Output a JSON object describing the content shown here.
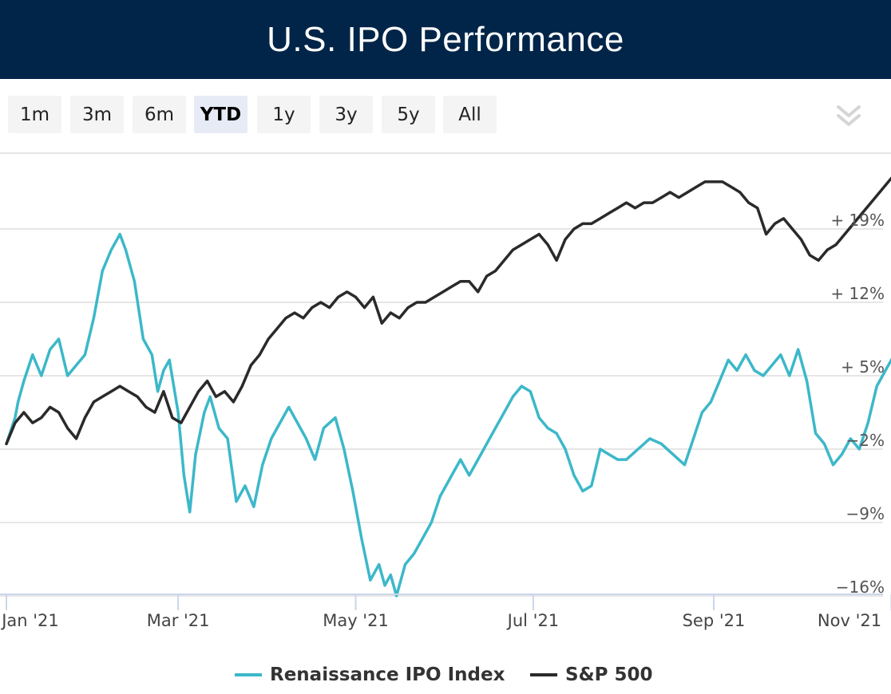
{
  "header": {
    "title": "U.S. IPO Performance"
  },
  "range_selector": {
    "buttons": [
      {
        "label": "1m",
        "active": false
      },
      {
        "label": "3m",
        "active": false
      },
      {
        "label": "6m",
        "active": false
      },
      {
        "label": "YTD",
        "active": true
      },
      {
        "label": "1y",
        "active": false
      },
      {
        "label": "3y",
        "active": false
      },
      {
        "label": "5y",
        "active": false
      },
      {
        "label": "All",
        "active": false
      }
    ],
    "menu_icon": "chevron-double-down-icon"
  },
  "chart_data": {
    "type": "line",
    "title": "U.S. IPO Performance",
    "x_range": [
      "2021-01-01",
      "2021-11-05"
    ],
    "x_tick_labels": [
      "Jan '21",
      "Mar '21",
      "May '21",
      "Jul '21",
      "Sep '21",
      "Nov '21"
    ],
    "y_tick_labels": [
      "+ 19%",
      "+ 12%",
      "+ 5%",
      "−2%",
      "−9%",
      "−16%"
    ],
    "y_ticks": [
      19,
      12,
      5,
      -2,
      -9,
      -16
    ],
    "ylim": [
      -16,
      26
    ],
    "grid": true,
    "legend_position": "bottom-center",
    "series": [
      {
        "name": "Renaissance IPO Index",
        "color": "#3cb8c9",
        "points": [
          [
            "2021-01-01",
            -1.5
          ],
          [
            "2021-01-04",
            1.0
          ],
          [
            "2021-01-05",
            2.5
          ],
          [
            "2021-01-07",
            4.5
          ],
          [
            "2021-01-10",
            7.0
          ],
          [
            "2021-01-13",
            5.0
          ],
          [
            "2021-01-16",
            7.5
          ],
          [
            "2021-01-19",
            8.5
          ],
          [
            "2021-01-22",
            5.0
          ],
          [
            "2021-01-25",
            6.0
          ],
          [
            "2021-01-28",
            7.0
          ],
          [
            "2021-01-31",
            10.5
          ],
          [
            "2021-02-03",
            15.0
          ],
          [
            "2021-02-06",
            17.0
          ],
          [
            "2021-02-09",
            18.5
          ],
          [
            "2021-02-11",
            17.0
          ],
          [
            "2021-02-14",
            14.0
          ],
          [
            "2021-02-17",
            8.5
          ],
          [
            "2021-02-20",
            7.0
          ],
          [
            "2021-02-22",
            3.5
          ],
          [
            "2021-02-24",
            5.5
          ],
          [
            "2021-02-26",
            6.5
          ],
          [
            "2021-03-01",
            1.5
          ],
          [
            "2021-03-03",
            -4.5
          ],
          [
            "2021-03-05",
            -8.0
          ],
          [
            "2021-03-07",
            -2.5
          ],
          [
            "2021-03-10",
            1.5
          ],
          [
            "2021-03-12",
            3.0
          ],
          [
            "2021-03-15",
            0.0
          ],
          [
            "2021-03-18",
            -1.0
          ],
          [
            "2021-03-21",
            -7.0
          ],
          [
            "2021-03-24",
            -5.5
          ],
          [
            "2021-03-27",
            -7.5
          ],
          [
            "2021-03-30",
            -3.5
          ],
          [
            "2021-04-02",
            -1.0
          ],
          [
            "2021-04-05",
            0.5
          ],
          [
            "2021-04-08",
            2.0
          ],
          [
            "2021-04-11",
            0.5
          ],
          [
            "2021-04-14",
            -1.0
          ],
          [
            "2021-04-17",
            -3.0
          ],
          [
            "2021-04-20",
            0.0
          ],
          [
            "2021-04-24",
            1.0
          ],
          [
            "2021-04-27",
            -2.0
          ],
          [
            "2021-04-30",
            -6.0
          ],
          [
            "2021-05-03",
            -10.5
          ],
          [
            "2021-05-06",
            -14.5
          ],
          [
            "2021-05-09",
            -13.0
          ],
          [
            "2021-05-11",
            -15.0
          ],
          [
            "2021-05-13",
            -14.0
          ],
          [
            "2021-05-15",
            -16.0
          ],
          [
            "2021-05-18",
            -13.0
          ],
          [
            "2021-05-21",
            -12.0
          ],
          [
            "2021-05-24",
            -10.5
          ],
          [
            "2021-05-27",
            -9.0
          ],
          [
            "2021-05-30",
            -6.5
          ],
          [
            "2021-06-03",
            -4.5
          ],
          [
            "2021-06-06",
            -3.0
          ],
          [
            "2021-06-09",
            -4.5
          ],
          [
            "2021-06-12",
            -3.0
          ],
          [
            "2021-06-15",
            -1.5
          ],
          [
            "2021-06-18",
            0.0
          ],
          [
            "2021-06-21",
            1.5
          ],
          [
            "2021-06-24",
            3.0
          ],
          [
            "2021-06-27",
            4.0
          ],
          [
            "2021-06-30",
            3.5
          ],
          [
            "2021-07-03",
            1.0
          ],
          [
            "2021-07-06",
            0.0
          ],
          [
            "2021-07-09",
            -0.5
          ],
          [
            "2021-07-12",
            -2.0
          ],
          [
            "2021-07-15",
            -4.5
          ],
          [
            "2021-07-18",
            -6.0
          ],
          [
            "2021-07-21",
            -5.5
          ],
          [
            "2021-07-24",
            -2.0
          ],
          [
            "2021-07-27",
            -2.5
          ],
          [
            "2021-07-30",
            -3.0
          ],
          [
            "2021-08-02",
            -3.0
          ],
          [
            "2021-08-06",
            -2.0
          ],
          [
            "2021-08-10",
            -1.0
          ],
          [
            "2021-08-14",
            -1.5
          ],
          [
            "2021-08-18",
            -2.5
          ],
          [
            "2021-08-22",
            -3.5
          ],
          [
            "2021-08-25",
            -1.0
          ],
          [
            "2021-08-28",
            1.5
          ],
          [
            "2021-08-31",
            2.5
          ],
          [
            "2021-09-03",
            4.5
          ],
          [
            "2021-09-06",
            6.5
          ],
          [
            "2021-09-09",
            5.5
          ],
          [
            "2021-09-12",
            7.0
          ],
          [
            "2021-09-15",
            5.5
          ],
          [
            "2021-09-18",
            5.0
          ],
          [
            "2021-09-21",
            6.0
          ],
          [
            "2021-09-24",
            7.0
          ],
          [
            "2021-09-27",
            5.0
          ],
          [
            "2021-09-30",
            7.5
          ],
          [
            "2021-10-03",
            4.5
          ],
          [
            "2021-10-06",
            -0.5
          ],
          [
            "2021-10-09",
            -1.5
          ],
          [
            "2021-10-12",
            -3.5
          ],
          [
            "2021-10-15",
            -2.5
          ],
          [
            "2021-10-18",
            -1.0
          ],
          [
            "2021-10-21",
            -2.0
          ],
          [
            "2021-10-24",
            0.5
          ],
          [
            "2021-10-27",
            4.0
          ],
          [
            "2021-10-30",
            5.5
          ],
          [
            "2021-11-02",
            7.0
          ],
          [
            "2021-11-04",
            5.0
          ],
          [
            "2021-11-05",
            5.0
          ]
        ]
      },
      {
        "name": "S&P 500",
        "color": "#2a2a2a",
        "points": [
          [
            "2021-01-01",
            -1.5
          ],
          [
            "2021-01-04",
            0.5
          ],
          [
            "2021-01-07",
            1.5
          ],
          [
            "2021-01-10",
            0.5
          ],
          [
            "2021-01-13",
            1.0
          ],
          [
            "2021-01-16",
            2.0
          ],
          [
            "2021-01-19",
            1.5
          ],
          [
            "2021-01-22",
            0.0
          ],
          [
            "2021-01-25",
            -1.0
          ],
          [
            "2021-01-28",
            1.0
          ],
          [
            "2021-01-31",
            2.5
          ],
          [
            "2021-02-03",
            3.0
          ],
          [
            "2021-02-06",
            3.5
          ],
          [
            "2021-02-09",
            4.0
          ],
          [
            "2021-02-12",
            3.5
          ],
          [
            "2021-02-15",
            3.0
          ],
          [
            "2021-02-18",
            2.0
          ],
          [
            "2021-02-21",
            1.5
          ],
          [
            "2021-02-24",
            3.5
          ],
          [
            "2021-02-27",
            1.0
          ],
          [
            "2021-03-02",
            0.5
          ],
          [
            "2021-03-05",
            2.0
          ],
          [
            "2021-03-08",
            3.5
          ],
          [
            "2021-03-11",
            4.5
          ],
          [
            "2021-03-14",
            3.0
          ],
          [
            "2021-03-17",
            3.5
          ],
          [
            "2021-03-20",
            2.5
          ],
          [
            "2021-03-23",
            4.0
          ],
          [
            "2021-03-26",
            6.0
          ],
          [
            "2021-03-29",
            7.0
          ],
          [
            "2021-04-01",
            8.5
          ],
          [
            "2021-04-04",
            9.5
          ],
          [
            "2021-04-07",
            10.5
          ],
          [
            "2021-04-10",
            11.0
          ],
          [
            "2021-04-13",
            10.5
          ],
          [
            "2021-04-16",
            11.5
          ],
          [
            "2021-04-19",
            12.0
          ],
          [
            "2021-04-22",
            11.5
          ],
          [
            "2021-04-25",
            12.5
          ],
          [
            "2021-04-28",
            13.0
          ],
          [
            "2021-05-01",
            12.5
          ],
          [
            "2021-05-04",
            11.5
          ],
          [
            "2021-05-07",
            12.5
          ],
          [
            "2021-05-10",
            10.0
          ],
          [
            "2021-05-13",
            11.0
          ],
          [
            "2021-05-16",
            10.5
          ],
          [
            "2021-05-19",
            11.5
          ],
          [
            "2021-05-22",
            12.0
          ],
          [
            "2021-05-25",
            12.0
          ],
          [
            "2021-05-28",
            12.5
          ],
          [
            "2021-05-31",
            13.0
          ],
          [
            "2021-06-03",
            13.5
          ],
          [
            "2021-06-06",
            14.0
          ],
          [
            "2021-06-09",
            14.0
          ],
          [
            "2021-06-12",
            13.0
          ],
          [
            "2021-06-15",
            14.5
          ],
          [
            "2021-06-18",
            15.0
          ],
          [
            "2021-06-21",
            16.0
          ],
          [
            "2021-06-24",
            17.0
          ],
          [
            "2021-06-27",
            17.5
          ],
          [
            "2021-06-30",
            18.0
          ],
          [
            "2021-07-03",
            18.5
          ],
          [
            "2021-07-06",
            17.5
          ],
          [
            "2021-07-09",
            16.0
          ],
          [
            "2021-07-12",
            18.0
          ],
          [
            "2021-07-15",
            19.0
          ],
          [
            "2021-07-18",
            19.5
          ],
          [
            "2021-07-21",
            19.5
          ],
          [
            "2021-07-24",
            20.0
          ],
          [
            "2021-07-27",
            20.5
          ],
          [
            "2021-07-30",
            21.0
          ],
          [
            "2021-08-02",
            21.5
          ],
          [
            "2021-08-05",
            21.0
          ],
          [
            "2021-08-08",
            21.5
          ],
          [
            "2021-08-11",
            21.5
          ],
          [
            "2021-08-14",
            22.0
          ],
          [
            "2021-08-17",
            22.5
          ],
          [
            "2021-08-20",
            22.0
          ],
          [
            "2021-08-23",
            22.5
          ],
          [
            "2021-08-26",
            23.0
          ],
          [
            "2021-08-29",
            23.5
          ],
          [
            "2021-09-01",
            23.5
          ],
          [
            "2021-09-04",
            23.5
          ],
          [
            "2021-09-07",
            23.0
          ],
          [
            "2021-09-10",
            22.5
          ],
          [
            "2021-09-13",
            21.5
          ],
          [
            "2021-09-16",
            21.0
          ],
          [
            "2021-09-19",
            18.5
          ],
          [
            "2021-09-22",
            19.5
          ],
          [
            "2021-09-25",
            20.0
          ],
          [
            "2021-09-28",
            19.0
          ],
          [
            "2021-10-01",
            18.0
          ],
          [
            "2021-10-04",
            16.5
          ],
          [
            "2021-10-07",
            16.0
          ],
          [
            "2021-10-10",
            17.0
          ],
          [
            "2021-10-13",
            17.5
          ],
          [
            "2021-10-16",
            18.5
          ],
          [
            "2021-10-19",
            19.5
          ],
          [
            "2021-10-22",
            20.5
          ],
          [
            "2021-10-25",
            21.5
          ],
          [
            "2021-10-28",
            22.5
          ],
          [
            "2021-10-31",
            23.5
          ],
          [
            "2021-11-03",
            24.5
          ],
          [
            "2021-11-05",
            25.0
          ]
        ]
      }
    ]
  },
  "legend": {
    "items": [
      {
        "label": "Renaissance IPO Index",
        "color": "#3cb8c9"
      },
      {
        "label": "S&P 500",
        "color": "#2a2a2a"
      }
    ]
  }
}
